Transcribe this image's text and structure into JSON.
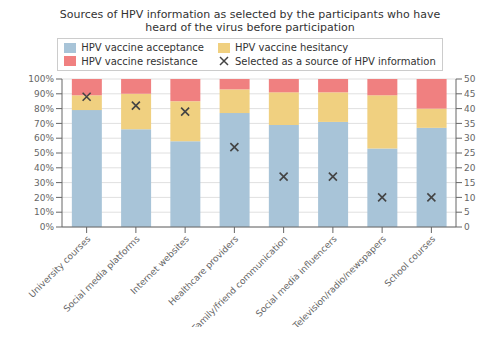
{
  "chart_data": {
    "type": "bar",
    "title": "Sources of HPV information as selected by the participants who have",
    "subtitle": "heard of the virus before participation",
    "categories": [
      "University courses",
      "Social media platforms",
      "Internet websites",
      "Healthcare providers",
      "Family/friend communication",
      "Social media influencers",
      "Television/radio/newspapers",
      "School courses"
    ],
    "series": [
      {
        "name": "HPV vaccine acceptance",
        "color": "#a8c4d8",
        "values": [
          79,
          66,
          58,
          77,
          69,
          71,
          53,
          67
        ]
      },
      {
        "name": "HPV vaccine hesitancy",
        "color": "#f0d080",
        "values": [
          10,
          24,
          27,
          16,
          22,
          20,
          36,
          13
        ]
      },
      {
        "name": "HPV vaccine resistance",
        "color": "#f08080",
        "values": [
          11,
          10,
          15,
          7,
          9,
          9,
          11,
          20
        ]
      },
      {
        "name": "Selected as a source of HPV information",
        "color": "#444444",
        "type": "scatter",
        "marker": "x",
        "axis": "y2",
        "values": [
          44,
          41,
          39,
          27,
          17,
          17,
          10,
          10
        ]
      }
    ],
    "stacked": true,
    "ylim": [
      0,
      100
    ],
    "yticks": [
      {
        "value": 0,
        "label": "0%"
      },
      {
        "value": 10,
        "label": "10%"
      },
      {
        "value": 20,
        "label": "20%"
      },
      {
        "value": 30,
        "label": "30%"
      },
      {
        "value": 40,
        "label": "40%"
      },
      {
        "value": 50,
        "label": "50%"
      },
      {
        "value": 60,
        "label": "60%"
      },
      {
        "value": 70,
        "label": "70%"
      },
      {
        "value": 80,
        "label": "80%"
      },
      {
        "value": 90,
        "label": "90%"
      },
      {
        "value": 100,
        "label": "100%"
      }
    ],
    "y2lim": [
      0,
      50
    ],
    "y2ticks": [
      0,
      5,
      10,
      15,
      20,
      25,
      30,
      35,
      40,
      45,
      50
    ],
    "grid": true,
    "legend": "top"
  }
}
